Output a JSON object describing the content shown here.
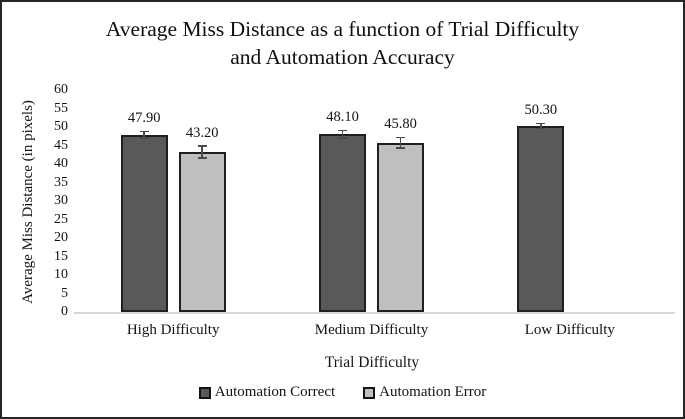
{
  "chart_data": {
    "type": "bar",
    "title": "Average Miss Distance as a function of Trial Difficulty and Automation Accuracy",
    "title_lines": [
      "Average Miss Distance as a function of Trial Difficulty",
      "and Automation Accuracy"
    ],
    "xlabel": "Trial Difficulty",
    "ylabel": "Average Miss Distance (in pixels)",
    "ylim": [
      0,
      60
    ],
    "ytick_step": 5,
    "yticks": [
      0,
      5,
      10,
      15,
      20,
      25,
      30,
      35,
      40,
      45,
      50,
      55,
      60
    ],
    "grid": false,
    "legend_position": "bottom",
    "categories": [
      "High Difficulty",
      "Medium Difficulty",
      "Low Difficulty"
    ],
    "series": [
      {
        "name": "Automation Correct",
        "color": "#595959",
        "values": [
          47.9,
          48.1,
          50.3
        ],
        "labels": [
          "47.90",
          "48.10",
          "50.30"
        ],
        "errors": [
          0.9,
          1.0,
          0.7
        ]
      },
      {
        "name": "Automation Error",
        "color": "#bfbfbf",
        "values": [
          43.2,
          45.8,
          null
        ],
        "labels": [
          "43.20",
          "45.80",
          null
        ],
        "errors": [
          1.6,
          1.4,
          null
        ]
      }
    ],
    "colors": {
      "bar_border": "#1f1f1f",
      "error_bar": "#4a4a4a",
      "axis_line": "#d9d9d9",
      "text": "#141414"
    }
  }
}
